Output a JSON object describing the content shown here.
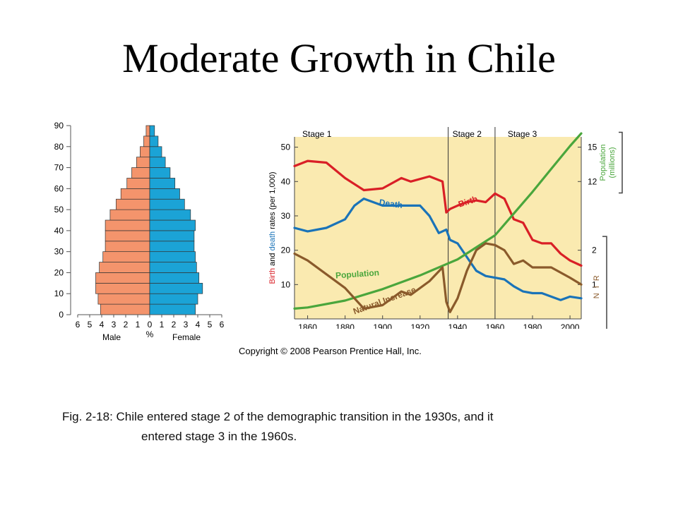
{
  "slide": {
    "title": "Moderate Growth in Chile",
    "copyright": "Copyright © 2008 Pearson Prentice Hall, Inc.",
    "caption_line1": "Fig. 2-18:  Chile entered stage 2 of the demographic transition in the 1930s, and it",
    "caption_line2": "entered stage 3 in the 1960s."
  },
  "colors": {
    "male": "#f4946c",
    "female": "#1ba3d6",
    "chart_bg": "#faeab0",
    "birth": "#d91f26",
    "death": "#1a73b8",
    "population": "#4aa63c",
    "natural_increase": "#8a5a2b"
  },
  "chart_data": [
    {
      "type": "bar",
      "subtype": "population-pyramid",
      "age_ticks": [
        "0",
        "10",
        "20",
        "30",
        "40",
        "50",
        "60",
        "70",
        "80",
        "90"
      ],
      "pct_ticks": [
        "6",
        "5",
        "4",
        "3",
        "2",
        "1",
        "0",
        "1",
        "2",
        "3",
        "4",
        "5",
        "6"
      ],
      "xlabel_left": "Male",
      "xlabel_center": "%",
      "xlabel_right": "Female",
      "xlim": [
        -6,
        6
      ],
      "ylim": [
        0,
        90
      ],
      "age_groups_start": [
        0,
        5,
        10,
        15,
        20,
        25,
        30,
        35,
        40,
        45,
        50,
        55,
        60,
        65,
        70,
        75,
        80,
        85
      ],
      "series": [
        {
          "name": "Male",
          "values": [
            4.1,
            4.3,
            4.5,
            4.5,
            4.2,
            3.9,
            3.7,
            3.7,
            3.7,
            3.3,
            2.8,
            2.4,
            1.9,
            1.5,
            1.1,
            0.8,
            0.5,
            0.3
          ]
        },
        {
          "name": "Female",
          "values": [
            3.8,
            4.0,
            4.4,
            4.1,
            3.9,
            3.8,
            3.7,
            3.7,
            3.8,
            3.4,
            2.9,
            2.5,
            2.1,
            1.7,
            1.3,
            1.0,
            0.7,
            0.4
          ]
        }
      ]
    },
    {
      "type": "line",
      "stage_labels": [
        "Stage 1",
        "Stage 2",
        "Stage 3"
      ],
      "stage_boundaries": [
        1935,
        1960
      ],
      "x_ticks": [
        "1860",
        "1880",
        "1900",
        "1920",
        "1940",
        "1960",
        "1980",
        "2000"
      ],
      "xlim": [
        1853,
        2006
      ],
      "y_ticks": [
        "10",
        "20",
        "30",
        "40",
        "50"
      ],
      "ylim": [
        0,
        53
      ],
      "ylabel": {
        "part1": "Birth",
        "part2": " and ",
        "part3": "death",
        "part4": " rates (per 1,000)"
      },
      "population_ticks": [
        "15",
        "12"
      ],
      "population_label_line1": "Population",
      "population_label_line2": "(millions)",
      "nir_ticks": [
        "2",
        "1"
      ],
      "nir_label": "N I R",
      "series": [
        {
          "name": "Birth",
          "points": [
            [
              1853,
              44.5
            ],
            [
              1860,
              46
            ],
            [
              1870,
              45.5
            ],
            [
              1880,
              41
            ],
            [
              1890,
              37.5
            ],
            [
              1900,
              38
            ],
            [
              1910,
              41
            ],
            [
              1915,
              40
            ],
            [
              1925,
              41.5
            ],
            [
              1932,
              40
            ],
            [
              1934,
              31
            ],
            [
              1936,
              32
            ],
            [
              1940,
              33
            ],
            [
              1945,
              34
            ],
            [
              1950,
              34.5
            ],
            [
              1955,
              34
            ],
            [
              1960,
              36.5
            ],
            [
              1965,
              35
            ],
            [
              1970,
              29
            ],
            [
              1975,
              28
            ],
            [
              1980,
              23
            ],
            [
              1985,
              22
            ],
            [
              1990,
              22
            ],
            [
              1995,
              19
            ],
            [
              2000,
              17
            ],
            [
              2006,
              15.5
            ]
          ]
        },
        {
          "name": "Death",
          "points": [
            [
              1853,
              26.5
            ],
            [
              1860,
              25.5
            ],
            [
              1870,
              26.5
            ],
            [
              1880,
              29
            ],
            [
              1885,
              33
            ],
            [
              1890,
              35
            ],
            [
              1900,
              33
            ],
            [
              1910,
              33
            ],
            [
              1920,
              33
            ],
            [
              1925,
              30
            ],
            [
              1930,
              25
            ],
            [
              1934,
              26
            ],
            [
              1936,
              23
            ],
            [
              1940,
              22
            ],
            [
              1945,
              18
            ],
            [
              1950,
              14
            ],
            [
              1955,
              12.5
            ],
            [
              1960,
              12
            ],
            [
              1965,
              11.5
            ],
            [
              1970,
              9.5
            ],
            [
              1975,
              8
            ],
            [
              1980,
              7.5
            ],
            [
              1985,
              7.5
            ],
            [
              1990,
              6.5
            ],
            [
              1995,
              5.5
            ],
            [
              2000,
              6.5
            ],
            [
              2006,
              6
            ]
          ]
        },
        {
          "name": "Population",
          "points": [
            [
              1853,
              0.9
            ],
            [
              1860,
              1.0
            ],
            [
              1880,
              1.6
            ],
            [
              1900,
              2.6
            ],
            [
              1920,
              3.8
            ],
            [
              1940,
              5.2
            ],
            [
              1960,
              7.3
            ],
            [
              1970,
              9.2
            ],
            [
              1980,
              11.1
            ],
            [
              1990,
              13.1
            ],
            [
              2000,
              15.1
            ],
            [
              2006,
              16.2
            ]
          ]
        },
        {
          "name": "Natural Increase",
          "points": [
            [
              1853,
              1.9
            ],
            [
              1860,
              1.7
            ],
            [
              1870,
              1.3
            ],
            [
              1880,
              0.9
            ],
            [
              1885,
              0.6
            ],
            [
              1890,
              0.3
            ],
            [
              1900,
              0.4
            ],
            [
              1910,
              0.8
            ],
            [
              1915,
              0.7
            ],
            [
              1925,
              1.1
            ],
            [
              1932,
              1.5
            ],
            [
              1934,
              0.5
            ],
            [
              1936,
              0.2
            ],
            [
              1940,
              0.6
            ],
            [
              1945,
              1.4
            ],
            [
              1950,
              2.0
            ],
            [
              1955,
              2.2
            ],
            [
              1960,
              2.15
            ],
            [
              1965,
              2.0
            ],
            [
              1970,
              1.6
            ],
            [
              1975,
              1.7
            ],
            [
              1980,
              1.5
            ],
            [
              1990,
              1.5
            ],
            [
              2000,
              1.2
            ],
            [
              2006,
              1.0
            ]
          ]
        }
      ],
      "series_labels": {
        "birth": "Birth",
        "death": "Death",
        "population": "Population",
        "natural_increase": "Natural Increase"
      }
    }
  ]
}
